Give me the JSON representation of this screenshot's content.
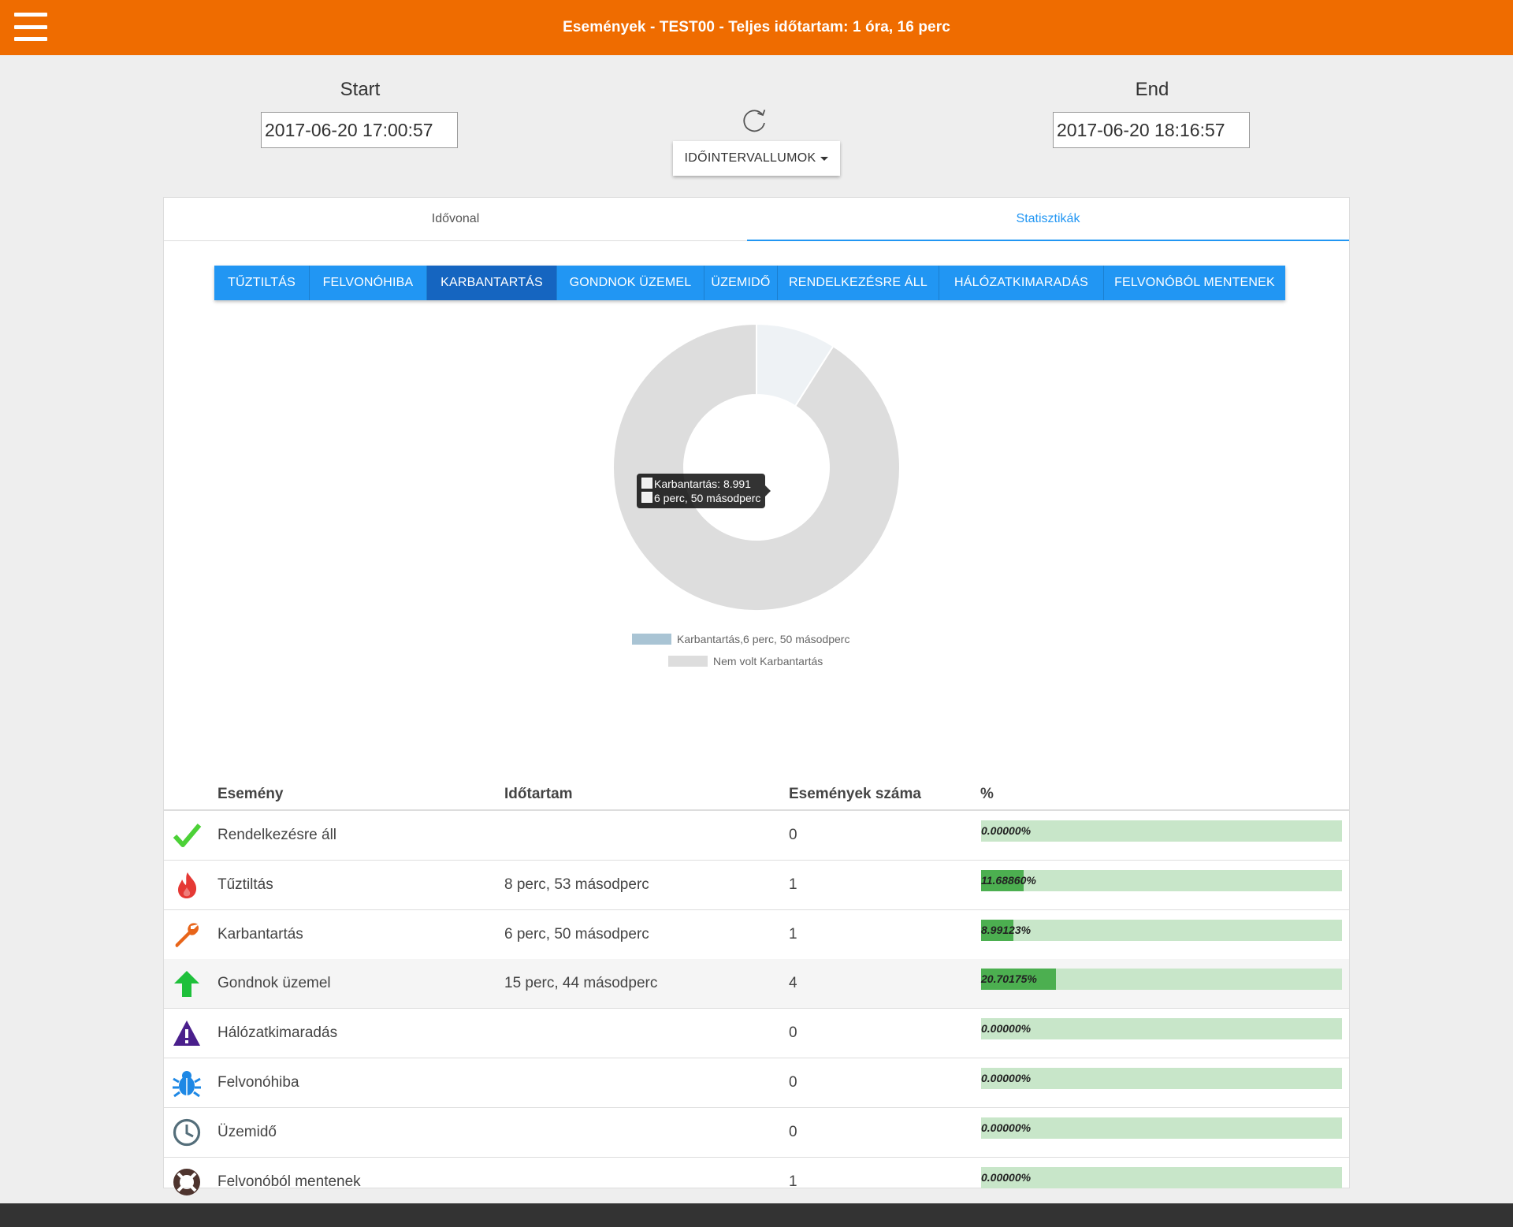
{
  "header": {
    "title": "Események - TEST00 - Teljes időtartam: 1 óra, 16 perc"
  },
  "dates": {
    "start_label": "Start",
    "start_value": "2017-06-20 17:00:57",
    "end_label": "End",
    "end_value": "2017-06-20 18:16:57",
    "interval_button": "IDŐINTERVALLUMOK"
  },
  "tabs": [
    {
      "label": "Idővonal",
      "active": false
    },
    {
      "label": "Statisztikák",
      "active": true
    }
  ],
  "filters": [
    {
      "label": "TŰZTILTÁS",
      "active": false
    },
    {
      "label": "FELVONÓHIBA",
      "active": false
    },
    {
      "label": "KARBANTARTÁS",
      "active": true
    },
    {
      "label": "GONDNOK ÜZEMEL",
      "active": false
    },
    {
      "label": "ÜZEMIDŐ",
      "active": false
    },
    {
      "label": "RENDELKEZÉSRE ÁLL",
      "active": false
    },
    {
      "label": "HÁLÓZATKIMARADÁS",
      "active": false
    },
    {
      "label": "FELVONÓBÓL MENTENEK",
      "active": false
    }
  ],
  "chart_data": {
    "type": "pie",
    "categories": [
      "Karbantartás,6 perc, 50 másodperc",
      "Nem volt Karbantartás"
    ],
    "values": [
      8.991,
      91.009
    ],
    "colors": [
      "#eef2f5",
      "#dddddd"
    ],
    "legend_colors": [
      "#a9c4d4",
      "#dddddd"
    ],
    "tooltip": {
      "line1": "Karbantartás: 8.991",
      "line2": "6 perc, 50 másodperc"
    }
  },
  "table": {
    "headers": {
      "event": "Esemény",
      "duration": "Időtartam",
      "count": "Események száma",
      "percent": "%"
    },
    "rows": [
      {
        "icon": "check-icon",
        "event": "Rendelkezésre áll",
        "duration": "",
        "count": "0",
        "percent": "0.00000%",
        "pct": 0
      },
      {
        "icon": "fire-icon",
        "event": "Tűztiltás",
        "duration": "8 perc, 53 másodperc",
        "count": "1",
        "percent": "11.68860%",
        "pct": 11.6886
      },
      {
        "icon": "wrench-icon",
        "event": "Karbantartás",
        "duration": "6 perc, 50 másodperc",
        "count": "1",
        "percent": "8.99123%",
        "pct": 8.99123
      },
      {
        "icon": "arrow-up-icon",
        "event": "Gondnok üzemel",
        "duration": "15 perc, 44 másodperc",
        "count": "4",
        "percent": "20.70175%",
        "pct": 20.70175
      },
      {
        "icon": "warning-icon",
        "event": "Hálózatkimaradás",
        "duration": "",
        "count": "0",
        "percent": "0.00000%",
        "pct": 0
      },
      {
        "icon": "bug-icon",
        "event": "Felvonóhiba",
        "duration": "",
        "count": "0",
        "percent": "0.00000%",
        "pct": 0
      },
      {
        "icon": "clock-icon",
        "event": "Üzemidő",
        "duration": "",
        "count": "0",
        "percent": "0.00000%",
        "pct": 0
      },
      {
        "icon": "lifebuoy-icon",
        "event": "Felvonóból mentenek",
        "duration": "",
        "count": "1",
        "percent": "0.00000%",
        "pct": 0
      }
    ]
  }
}
